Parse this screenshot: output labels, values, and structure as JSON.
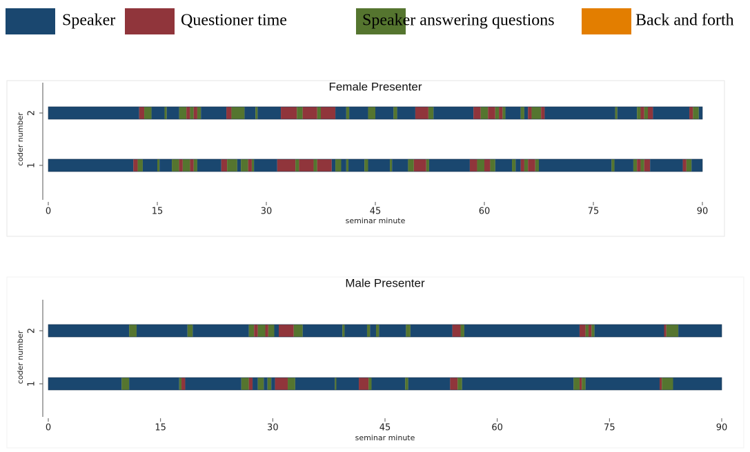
{
  "legend": {
    "items": [
      {
        "name": "Speaker",
        "color": "#1a476f"
      },
      {
        "name": "Questioner time",
        "color": "#90353b"
      },
      {
        "name": "Speaker answering questions",
        "color": "#55752f"
      },
      {
        "name": "Back and forth",
        "color": "#e37e00"
      }
    ]
  },
  "chart_data": [
    {
      "type": "timeline",
      "title": "Female Presenter",
      "xlabel": "seminar minute",
      "ylabel": "coder number",
      "xlim": [
        0,
        90
      ],
      "xticks": [
        0,
        15,
        30,
        45,
        60,
        75,
        90
      ],
      "categories": [
        "2",
        "1"
      ],
      "rows": [
        {
          "segments": [
            [
              0,
              12.5,
              0
            ],
            [
              12.5,
              13.2,
              1
            ],
            [
              13.2,
              14.2,
              2
            ],
            [
              14.2,
              16,
              0
            ],
            [
              16,
              16.3,
              2
            ],
            [
              16.3,
              18,
              0
            ],
            [
              18,
              19,
              2
            ],
            [
              19,
              19.5,
              1
            ],
            [
              19.5,
              20,
              2
            ],
            [
              20,
              20.5,
              1
            ],
            [
              20.5,
              21,
              2
            ],
            [
              21,
              24.5,
              0
            ],
            [
              24.5,
              25.2,
              1
            ],
            [
              25.2,
              27,
              2
            ],
            [
              27,
              28.5,
              0
            ],
            [
              28.5,
              28.8,
              2
            ],
            [
              28.8,
              32,
              0
            ],
            [
              32,
              34.2,
              1
            ],
            [
              34.2,
              35,
              2
            ],
            [
              35,
              37,
              1
            ],
            [
              37,
              37.5,
              2
            ],
            [
              37.5,
              39.5,
              1
            ],
            [
              39.5,
              41,
              0
            ],
            [
              41,
              41.4,
              2
            ],
            [
              41.4,
              44,
              0
            ],
            [
              44,
              45,
              2
            ],
            [
              45,
              47.5,
              0
            ],
            [
              47.5,
              48,
              2
            ],
            [
              48,
              50.5,
              0
            ],
            [
              50.5,
              52.3,
              1
            ],
            [
              52.3,
              53,
              2
            ],
            [
              53,
              58.5,
              0
            ],
            [
              58.5,
              59.5,
              1
            ],
            [
              59.5,
              60.5,
              2
            ],
            [
              60.5,
              61.5,
              1
            ],
            [
              61.5,
              62,
              2
            ],
            [
              62,
              62.5,
              1
            ],
            [
              62.5,
              62.9,
              2
            ],
            [
              62.9,
              65,
              0
            ],
            [
              65,
              65.5,
              2
            ],
            [
              65.5,
              66,
              0
            ],
            [
              66,
              66.5,
              1
            ],
            [
              66.5,
              67.8,
              2
            ],
            [
              67.8,
              68.3,
              1
            ],
            [
              68.3,
              78,
              0
            ],
            [
              78,
              78.3,
              2
            ],
            [
              78.3,
              81,
              0
            ],
            [
              81,
              81.5,
              2
            ],
            [
              81.5,
              82,
              1
            ],
            [
              82,
              82.5,
              2
            ],
            [
              82.5,
              83.2,
              1
            ],
            [
              83.2,
              88.2,
              0
            ],
            [
              88.2,
              88.7,
              1
            ],
            [
              88.7,
              89.5,
              2
            ],
            [
              89.5,
              90,
              0
            ]
          ]
        },
        {
          "segments": [
            [
              0,
              11.7,
              0
            ],
            [
              11.7,
              12.3,
              1
            ],
            [
              12.3,
              13,
              2
            ],
            [
              13,
              15,
              0
            ],
            [
              15,
              15.3,
              2
            ],
            [
              15.3,
              17,
              0
            ],
            [
              17,
              18,
              2
            ],
            [
              18,
              18.5,
              1
            ],
            [
              18.5,
              19.5,
              2
            ],
            [
              19.5,
              20,
              1
            ],
            [
              20,
              20.5,
              2
            ],
            [
              20.5,
              23.8,
              0
            ],
            [
              23.8,
              24.6,
              1
            ],
            [
              24.6,
              26,
              2
            ],
            [
              26,
              26.5,
              0
            ],
            [
              26.5,
              27.5,
              2
            ],
            [
              27.5,
              28,
              1
            ],
            [
              28,
              28.3,
              2
            ],
            [
              28.3,
              31.5,
              0
            ],
            [
              31.5,
              34,
              1
            ],
            [
              34,
              34.5,
              2
            ],
            [
              34.5,
              36.5,
              1
            ],
            [
              36.5,
              37,
              2
            ],
            [
              37,
              39,
              1
            ],
            [
              39,
              39.5,
              0
            ],
            [
              39.5,
              40.3,
              2
            ],
            [
              40.3,
              41,
              0
            ],
            [
              41,
              41.3,
              2
            ],
            [
              41.3,
              43.5,
              0
            ],
            [
              43.5,
              44,
              2
            ],
            [
              44,
              47,
              0
            ],
            [
              47,
              47.3,
              2
            ],
            [
              47.3,
              49.5,
              0
            ],
            [
              49.5,
              50.3,
              2
            ],
            [
              50.3,
              52,
              1
            ],
            [
              52,
              52.4,
              2
            ],
            [
              52.4,
              58,
              0
            ],
            [
              58,
              59,
              1
            ],
            [
              59,
              60,
              2
            ],
            [
              60,
              60.8,
              1
            ],
            [
              60.8,
              61.5,
              2
            ],
            [
              61.5,
              63.8,
              0
            ],
            [
              63.8,
              64.3,
              2
            ],
            [
              64.3,
              65,
              0
            ],
            [
              65,
              65.5,
              1
            ],
            [
              65.5,
              66,
              2
            ],
            [
              66,
              67,
              1
            ],
            [
              67,
              67.5,
              2
            ],
            [
              67.5,
              77.5,
              0
            ],
            [
              77.5,
              77.9,
              2
            ],
            [
              77.9,
              80.5,
              0
            ],
            [
              80.5,
              81,
              2
            ],
            [
              81,
              81.5,
              1
            ],
            [
              81.5,
              82,
              2
            ],
            [
              82,
              82.8,
              1
            ],
            [
              82.8,
              87.3,
              0
            ],
            [
              87.3,
              87.8,
              1
            ],
            [
              87.8,
              88.5,
              2
            ],
            [
              88.5,
              90,
              0
            ]
          ]
        }
      ]
    },
    {
      "type": "timeline",
      "title": "Male Presenter",
      "xlabel": "seminar minute",
      "ylabel": "coder number",
      "xlim": [
        0,
        90
      ],
      "xticks": [
        0,
        15,
        30,
        45,
        60,
        75,
        90
      ],
      "categories": [
        "2",
        "1"
      ],
      "rows": [
        {
          "segments": [
            [
              0,
              10.8,
              0
            ],
            [
              10.8,
              11.8,
              2
            ],
            [
              11.8,
              18.6,
              0
            ],
            [
              18.6,
              19.3,
              2
            ],
            [
              19.3,
              26.8,
              0
            ],
            [
              26.8,
              27.5,
              2
            ],
            [
              27.5,
              28,
              1
            ],
            [
              28,
              29,
              2
            ],
            [
              29,
              29.4,
              1
            ],
            [
              29.4,
              30.2,
              2
            ],
            [
              30.2,
              30.8,
              0
            ],
            [
              30.8,
              32.8,
              1
            ],
            [
              32.8,
              34,
              2
            ],
            [
              34,
              39.3,
              0
            ],
            [
              39.3,
              39.6,
              2
            ],
            [
              39.6,
              42.6,
              0
            ],
            [
              42.6,
              43,
              2
            ],
            [
              43,
              43.8,
              0
            ],
            [
              43.8,
              44.2,
              2
            ],
            [
              44.2,
              47.8,
              0
            ],
            [
              47.8,
              48.4,
              2
            ],
            [
              48.4,
              54,
              0
            ],
            [
              54,
              55.1,
              1
            ],
            [
              55.1,
              55.6,
              2
            ],
            [
              55.6,
              71,
              0
            ],
            [
              71,
              71.8,
              1
            ],
            [
              71.8,
              72.2,
              2
            ],
            [
              72.2,
              72.6,
              1
            ],
            [
              72.6,
              73,
              2
            ],
            [
              73,
              82.3,
              0
            ],
            [
              82.3,
              82.6,
              1
            ],
            [
              82.6,
              84.2,
              2
            ],
            [
              84.2,
              90,
              0
            ]
          ]
        },
        {
          "segments": [
            [
              0,
              9.8,
              0
            ],
            [
              9.8,
              10.8,
              2
            ],
            [
              10.8,
              17.5,
              0
            ],
            [
              17.5,
              17.8,
              2
            ],
            [
              17.8,
              18.3,
              1
            ],
            [
              18.3,
              25.8,
              0
            ],
            [
              25.8,
              26.8,
              2
            ],
            [
              26.8,
              27.3,
              1
            ],
            [
              27.3,
              28,
              0
            ],
            [
              28,
              28.8,
              2
            ],
            [
              28.8,
              29.3,
              0
            ],
            [
              29.3,
              29.8,
              2
            ],
            [
              29.8,
              30.3,
              0
            ],
            [
              30.3,
              32,
              1
            ],
            [
              32,
              33,
              2
            ],
            [
              33,
              38.3,
              0
            ],
            [
              38.3,
              38.5,
              2
            ],
            [
              38.5,
              41.5,
              0
            ],
            [
              41.5,
              42.8,
              1
            ],
            [
              42.8,
              43.2,
              2
            ],
            [
              43.2,
              47.7,
              0
            ],
            [
              47.7,
              48.1,
              2
            ],
            [
              48.1,
              53.7,
              0
            ],
            [
              53.7,
              54.7,
              1
            ],
            [
              54.7,
              55.3,
              2
            ],
            [
              55.3,
              70.2,
              0
            ],
            [
              70.2,
              71,
              2
            ],
            [
              71,
              71.3,
              1
            ],
            [
              71.3,
              71.8,
              2
            ],
            [
              71.8,
              81.7,
              0
            ],
            [
              81.7,
              82,
              1
            ],
            [
              82,
              83.5,
              2
            ],
            [
              83.5,
              90,
              0
            ]
          ]
        }
      ]
    }
  ]
}
